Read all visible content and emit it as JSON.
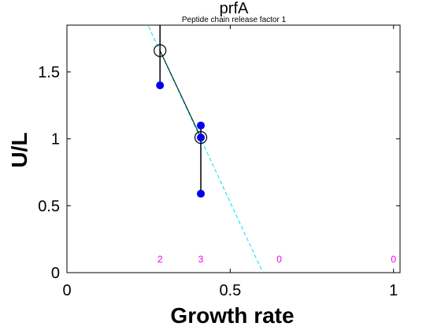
{
  "chart_data": {
    "type": "scatter",
    "title": "prfA",
    "subtitle": "Peptide chain release factor 1",
    "xlabel": "Growth rate",
    "ylabel": "U/L",
    "xlim": [
      0,
      1.02
    ],
    "ylim": [
      0,
      1.85
    ],
    "xticks": [
      0,
      0.5,
      1
    ],
    "xtick_labels": [
      "0",
      "0.5",
      "1"
    ],
    "yticks": [
      0,
      0.5,
      1,
      1.5
    ],
    "ytick_labels": [
      "0",
      "0.5",
      "1",
      "1.5"
    ],
    "grid": false,
    "points": [
      {
        "x": 0.285,
        "y": 1.4
      },
      {
        "x": 0.41,
        "y": 1.1
      },
      {
        "x": 0.41,
        "y": 1.01
      },
      {
        "x": 0.41,
        "y": 0.59
      }
    ],
    "means": [
      {
        "x": 0.285,
        "y": 1.66,
        "err_low": 1.4,
        "err_high": 1.85
      },
      {
        "x": 0.41,
        "y": 1.01,
        "err_low": 0.59,
        "err_high": 1.1
      }
    ],
    "fit_line": {
      "x0": 0.25,
      "y0": 1.84,
      "x1": 0.6,
      "y1": 0.0
    },
    "fit_segment": {
      "x0": 0.285,
      "y0": 1.66,
      "x1": 0.41,
      "y1": 1.01
    },
    "counts": [
      {
        "x": 0.285,
        "label": "2"
      },
      {
        "x": 0.41,
        "label": "3"
      },
      {
        "x": 0.65,
        "label": "0"
      },
      {
        "x": 1.0,
        "label": "0"
      }
    ],
    "count_y": 0.1,
    "colors": {
      "points": "#0000ee",
      "means": "#000000",
      "fit": "#00e5ee",
      "counts": "#ee00ee",
      "axes": "#000000"
    }
  }
}
